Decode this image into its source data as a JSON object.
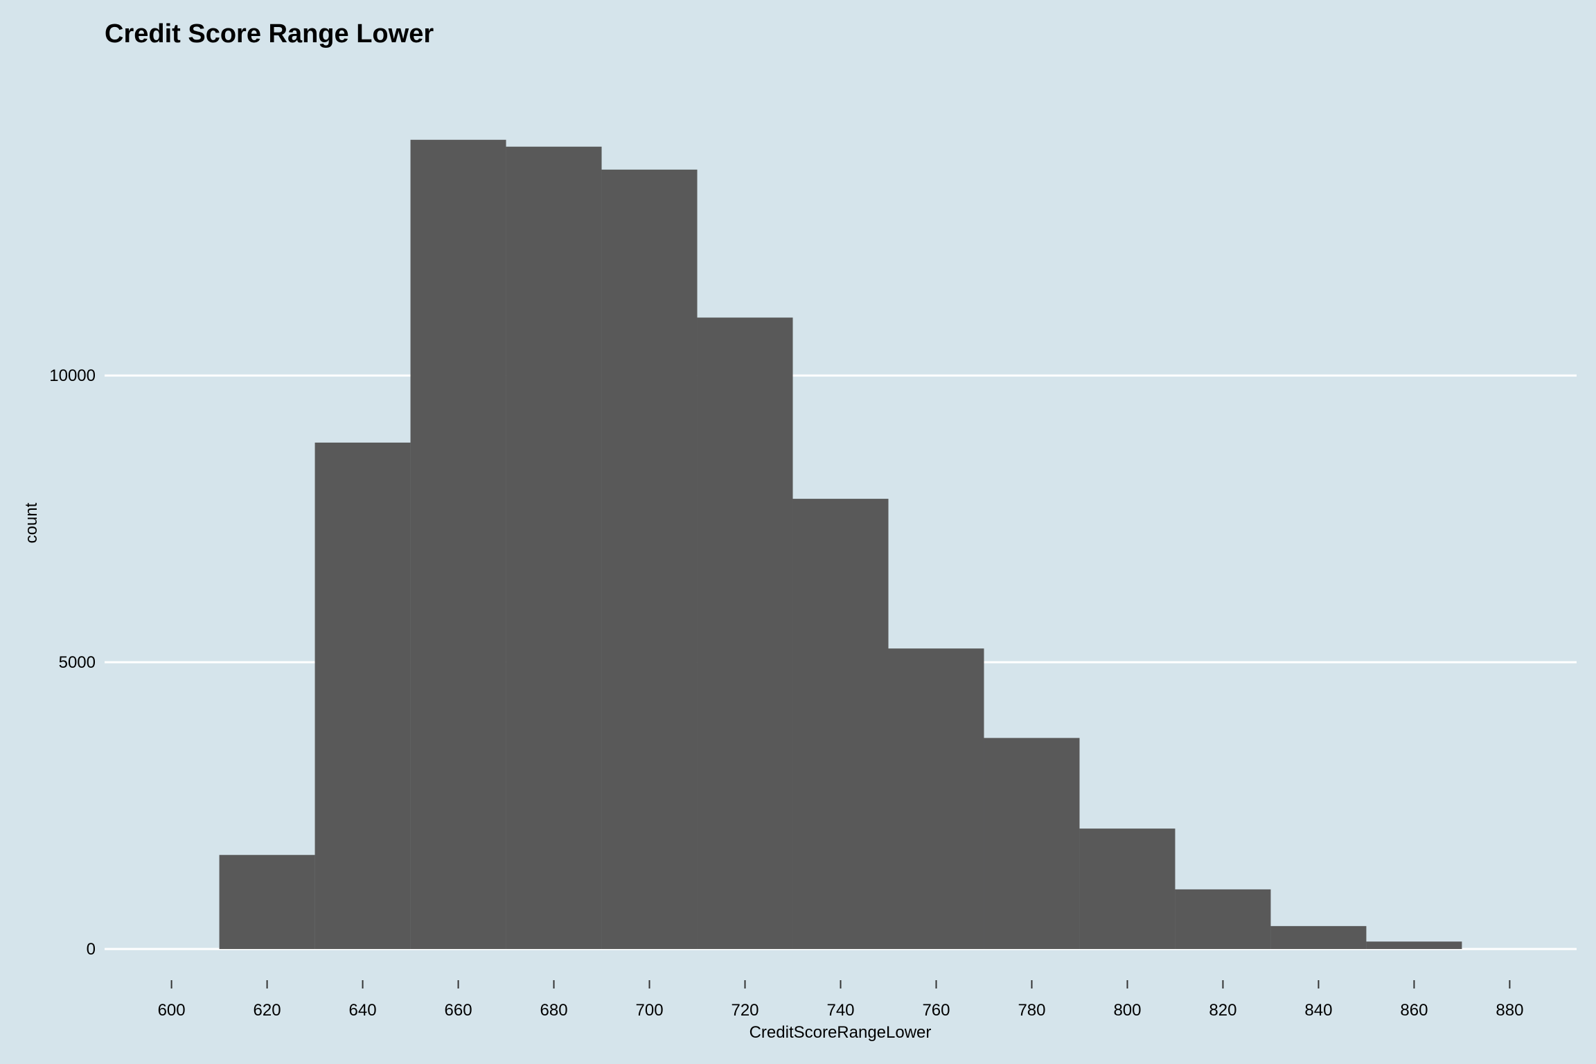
{
  "chart_data": {
    "type": "bar",
    "title": "Credit Score Range Lower",
    "xlabel": "CreditScoreRangeLower",
    "ylabel": "count",
    "bin_width": 20,
    "bins": [
      {
        "x_start": 610,
        "x_end": 630,
        "count": 1640
      },
      {
        "x_start": 630,
        "x_end": 650,
        "count": 8830
      },
      {
        "x_start": 650,
        "x_end": 670,
        "count": 14110
      },
      {
        "x_start": 670,
        "x_end": 690,
        "count": 13990
      },
      {
        "x_start": 690,
        "x_end": 710,
        "count": 13590
      },
      {
        "x_start": 710,
        "x_end": 730,
        "count": 11010
      },
      {
        "x_start": 730,
        "x_end": 750,
        "count": 7850
      },
      {
        "x_start": 750,
        "x_end": 770,
        "count": 5240
      },
      {
        "x_start": 770,
        "x_end": 790,
        "count": 3680
      },
      {
        "x_start": 790,
        "x_end": 810,
        "count": 2100
      },
      {
        "x_start": 810,
        "x_end": 830,
        "count": 1040
      },
      {
        "x_start": 830,
        "x_end": 850,
        "count": 400
      },
      {
        "x_start": 850,
        "x_end": 870,
        "count": 130
      }
    ],
    "x_ticks": [
      600,
      620,
      640,
      660,
      680,
      700,
      720,
      740,
      760,
      780,
      800,
      820,
      840,
      860,
      880
    ],
    "y_ticks": [
      0,
      5000,
      10000
    ],
    "xlim": [
      586,
      894
    ],
    "ylim": [
      0,
      15400
    ],
    "grid": {
      "horizontal_major": true,
      "vertical": false
    },
    "colors": {
      "background": "#d5e4eb",
      "bar_fill": "#595959",
      "grid": "#ffffff"
    }
  }
}
